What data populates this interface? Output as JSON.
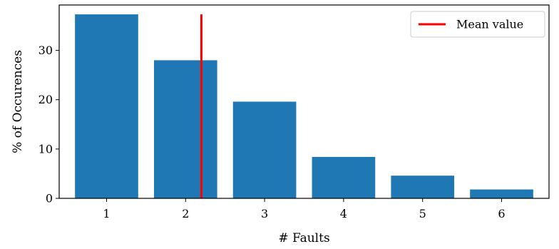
{
  "chart_data": {
    "type": "bar",
    "categories": [
      "1",
      "2",
      "3",
      "4",
      "5",
      "6"
    ],
    "x": [
      1,
      2,
      3,
      4,
      5,
      6
    ],
    "values": [
      37.3,
      28.0,
      19.6,
      8.4,
      4.6,
      1.8
    ],
    "xlabel": "# Faults",
    "ylabel": "% of Occurences",
    "xlim": [
      0.4,
      6.6
    ],
    "ylim": [
      0,
      39.2
    ],
    "yticks": [
      0,
      10,
      20,
      30
    ],
    "yticklabels": [
      "0",
      "10",
      "20",
      "30"
    ],
    "xticklabels": [
      "1",
      "2",
      "3",
      "4",
      "5",
      "6"
    ],
    "bar_color": "#1f77b4",
    "mean_line": {
      "x": 2.2,
      "y_range": [
        0,
        37.3
      ],
      "color": "#ff0000",
      "name": "Mean value"
    },
    "legend": {
      "placement": "upper right",
      "entries": [
        "Mean value"
      ]
    },
    "grid": false
  }
}
